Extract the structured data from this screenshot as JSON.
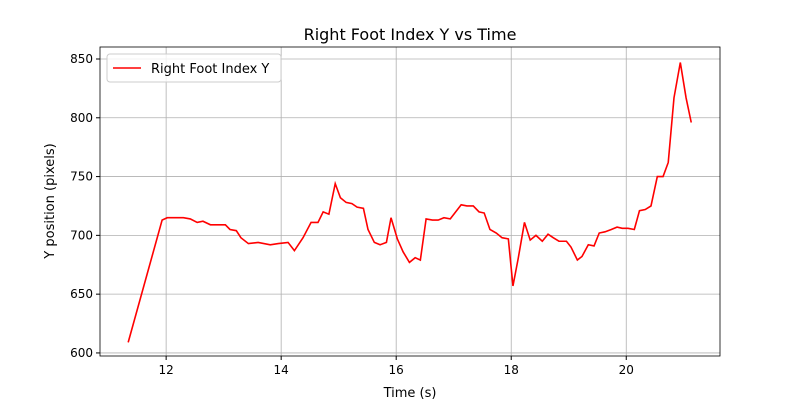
{
  "chart_data": {
    "type": "line",
    "title": "Right Foot Index Y vs Time",
    "xlabel": "Time (s)",
    "ylabel": "Y position (pixels)",
    "x": [
      11.34,
      11.93,
      12.02,
      12.3,
      12.42,
      12.54,
      12.64,
      12.77,
      12.89,
      13.03,
      13.11,
      13.22,
      13.3,
      13.43,
      13.6,
      13.81,
      13.95,
      14.12,
      14.23,
      14.38,
      14.52,
      14.64,
      14.73,
      14.83,
      14.94,
      15.03,
      15.13,
      15.23,
      15.32,
      15.43,
      15.51,
      15.62,
      15.72,
      15.83,
      15.91,
      16.02,
      16.12,
      16.23,
      16.33,
      16.42,
      16.52,
      16.63,
      16.73,
      16.83,
      16.94,
      17.13,
      17.23,
      17.34,
      17.44,
      17.53,
      17.63,
      17.74,
      17.84,
      17.95,
      18.03,
      18.12,
      18.23,
      18.33,
      18.43,
      18.54,
      18.64,
      18.73,
      18.83,
      18.96,
      19.04,
      19.15,
      19.23,
      19.34,
      19.44,
      19.53,
      19.63,
      19.74,
      19.84,
      19.93,
      20.03,
      20.14,
      20.23,
      20.33,
      20.43,
      20.54,
      20.64,
      20.73,
      20.83,
      20.94,
      21.04,
      21.13
    ],
    "series": [
      {
        "name": "Right Foot Index Y",
        "color": "#ff0000",
        "values": [
          609,
          713,
          715,
          715,
          714,
          711,
          712,
          709,
          709,
          709,
          705,
          704,
          698,
          693,
          694,
          692,
          693,
          694,
          687,
          698,
          711,
          711,
          720,
          718,
          744,
          732,
          728,
          727,
          724,
          723,
          705,
          694,
          692,
          694,
          715,
          697,
          686,
          677,
          681,
          679,
          714,
          713,
          713,
          715,
          714,
          726,
          725,
          725,
          720,
          719,
          705,
          702,
          698,
          697,
          657,
          680,
          711,
          696,
          700,
          695,
          701,
          698,
          695,
          695,
          690,
          679,
          682,
          692,
          691,
          702,
          703,
          705,
          707,
          706,
          706,
          705,
          721,
          722,
          725,
          750,
          750,
          762,
          817,
          847,
          817,
          796
        ]
      }
    ],
    "xlim": [
      10.85,
      21.63
    ],
    "ylim": [
      597.4,
      860.2
    ],
    "xticks": [
      12,
      14,
      16,
      18,
      20
    ],
    "yticks": [
      600,
      650,
      700,
      750,
      800,
      850
    ],
    "grid": true,
    "legend": "upper left"
  }
}
